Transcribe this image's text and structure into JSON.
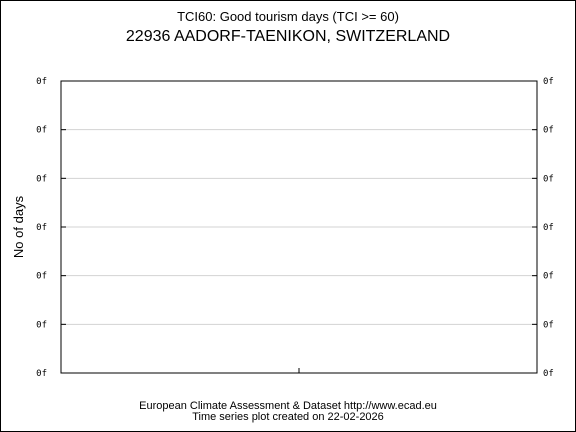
{
  "chart_data": {
    "type": "line",
    "title": "TCI60: Good tourism days (TCI >= 60)",
    "subtitle": "22936 AADORF-TAENIKON, SWITZERLAND",
    "xlabel": "",
    "ylabel": "No of days",
    "y_tick_labels": [
      "0f",
      "0f",
      "0f",
      "0f",
      "0f",
      "0f",
      "0f"
    ],
    "series": [],
    "grid": true,
    "colors": {
      "axis": "#000000",
      "grid": "#d3d3d3",
      "background": "#ffffff"
    }
  },
  "footer": {
    "line1": "European Climate Assessment & Dataset  http://www.ecad.eu",
    "line2": "Time series plot created on 22-02-2026"
  }
}
